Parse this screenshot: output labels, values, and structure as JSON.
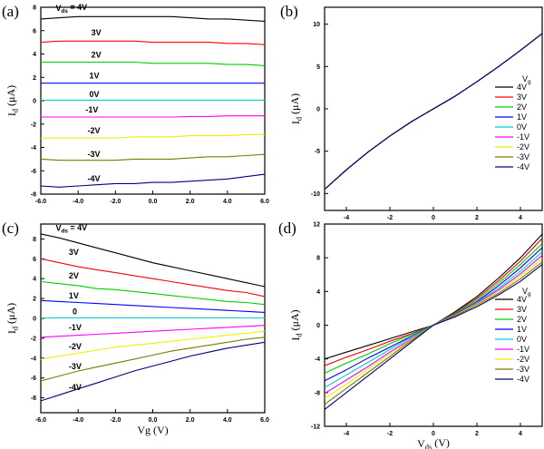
{
  "panels": {
    "a": {
      "label": "(a)"
    },
    "b": {
      "label": "(b)"
    },
    "c": {
      "label": "(c)"
    },
    "d": {
      "label": "(d)"
    }
  },
  "colors": {
    "4V": "#000000",
    "3V": "#ff0000",
    "2V": "#00cc00",
    "1V": "#0000ff",
    "0V": "#00cccc",
    "-1V": "#ff00ff",
    "-2V": "#eeee00",
    "-3V": "#7a7a00",
    "-4V": "#00007a"
  },
  "chart_data": [
    {
      "id": "a",
      "type": "line",
      "ylabel": "I_d (μA)",
      "xlabel": "",
      "xlim": [
        -6,
        6
      ],
      "ylim": [
        -8,
        8
      ],
      "xticks": [
        "-6.0",
        "-4.0",
        "-2.0",
        "0.0",
        "2.0",
        "4.0",
        "6.0"
      ],
      "yticks": [
        "-8",
        "-6",
        "-4",
        "-2",
        "0",
        "2",
        "4",
        "6",
        "8"
      ],
      "grid": false,
      "x": [
        -6,
        -5,
        -4,
        -3,
        -2,
        -1,
        0,
        1,
        2,
        3,
        4,
        5,
        6
      ],
      "series": [
        {
          "name": "4V",
          "values": [
            7.0,
            7.1,
            7.2,
            7.2,
            7.2,
            7.2,
            7.2,
            7.2,
            7.1,
            7.0,
            7.0,
            6.9,
            6.8
          ]
        },
        {
          "name": "3V",
          "values": [
            5.0,
            5.1,
            5.1,
            5.1,
            5.1,
            5.1,
            5.0,
            5.0,
            5.0,
            5.0,
            4.9,
            4.9,
            4.8
          ]
        },
        {
          "name": "2V",
          "values": [
            3.3,
            3.3,
            3.3,
            3.3,
            3.3,
            3.3,
            3.2,
            3.2,
            3.2,
            3.2,
            3.1,
            3.1,
            3.0
          ]
        },
        {
          "name": "1V",
          "values": [
            1.5,
            1.5,
            1.5,
            1.5,
            1.5,
            1.5,
            1.5,
            1.5,
            1.5,
            1.5,
            1.5,
            1.5,
            1.5
          ]
        },
        {
          "name": "0V",
          "values": [
            0.05,
            0.05,
            0.05,
            0.05,
            0.05,
            0.05,
            0.05,
            0.05,
            0.05,
            0.05,
            0.05,
            0.05,
            0.05
          ]
        },
        {
          "name": "-1V",
          "values": [
            -1.4,
            -1.4,
            -1.4,
            -1.4,
            -1.4,
            -1.4,
            -1.4,
            -1.4,
            -1.35,
            -1.35,
            -1.3,
            -1.3,
            -1.3
          ]
        },
        {
          "name": "-2V",
          "values": [
            -3.2,
            -3.2,
            -3.2,
            -3.2,
            -3.2,
            -3.1,
            -3.1,
            -3.1,
            -3.0,
            -3.0,
            -3.0,
            -2.9,
            -2.9
          ]
        },
        {
          "name": "-3V",
          "values": [
            -5.0,
            -5.1,
            -5.1,
            -5.1,
            -5.1,
            -5.0,
            -5.0,
            -5.0,
            -4.9,
            -4.8,
            -4.8,
            -4.7,
            -4.6
          ]
        },
        {
          "name": "-4V",
          "values": [
            -7.3,
            -7.4,
            -7.3,
            -7.2,
            -7.1,
            -7.1,
            -7.0,
            -7.0,
            -6.9,
            -6.8,
            -6.7,
            -6.5,
            -6.3
          ]
        }
      ],
      "annotations": [
        {
          "text": "V_ds = 4V",
          "x": -5.2,
          "y": 7.7
        },
        {
          "text": "3V",
          "x": -3.3,
          "y": 5.6
        },
        {
          "text": "2V",
          "x": -3.3,
          "y": 3.7
        },
        {
          "text": "1V",
          "x": -3.4,
          "y": 1.9
        },
        {
          "text": "0V",
          "x": -3.4,
          "y": 0.3
        },
        {
          "text": "-1V",
          "x": -3.6,
          "y": -1.0
        },
        {
          "text": "-2V",
          "x": -3.5,
          "y": -2.8
        },
        {
          "text": "-3V",
          "x": -3.5,
          "y": -4.8
        },
        {
          "text": "-4V",
          "x": -3.5,
          "y": -6.9
        }
      ]
    },
    {
      "id": "b",
      "type": "line",
      "ylabel": "I_d (μA)",
      "xlabel": "",
      "xlim": [
        -5,
        5
      ],
      "ylim": [
        -12,
        12
      ],
      "xticks": [
        "-4",
        "-2",
        "0",
        "2",
        "4"
      ],
      "yticks": [
        "-10",
        "-5",
        "0",
        "5",
        "10"
      ],
      "grid": false,
      "legend": {
        "title": "V_g",
        "placement": "right"
      },
      "x": [
        -5,
        -4,
        -3,
        -2,
        -1,
        0,
        1,
        2,
        3,
        4,
        5
      ],
      "series": [
        {
          "name": "4V",
          "values": [
            -9.5,
            -7.2,
            -5.1,
            -3.2,
            -1.5,
            0,
            1.5,
            3.2,
            5.0,
            6.9,
            8.9
          ]
        },
        {
          "name": "3V",
          "values": [
            -9.5,
            -7.2,
            -5.1,
            -3.2,
            -1.5,
            0,
            1.5,
            3.2,
            5.0,
            6.9,
            8.9
          ]
        },
        {
          "name": "2V",
          "values": [
            -9.5,
            -7.2,
            -5.1,
            -3.2,
            -1.5,
            0,
            1.5,
            3.2,
            5.0,
            6.9,
            8.9
          ]
        },
        {
          "name": "1V",
          "values": [
            -9.5,
            -7.2,
            -5.1,
            -3.2,
            -1.5,
            0,
            1.5,
            3.2,
            5.0,
            6.9,
            8.9
          ]
        },
        {
          "name": "0V",
          "values": [
            -9.5,
            -7.2,
            -5.1,
            -3.2,
            -1.5,
            0,
            1.5,
            3.2,
            5.0,
            6.9,
            8.9
          ]
        },
        {
          "name": "-1V",
          "values": [
            -9.5,
            -7.2,
            -5.1,
            -3.2,
            -1.5,
            0,
            1.5,
            3.2,
            5.0,
            6.9,
            8.9
          ]
        },
        {
          "name": "-2V",
          "values": [
            -9.5,
            -7.2,
            -5.1,
            -3.2,
            -1.5,
            0,
            1.5,
            3.2,
            5.0,
            6.9,
            8.9
          ]
        },
        {
          "name": "-3V",
          "values": [
            -9.5,
            -7.2,
            -5.1,
            -3.2,
            -1.5,
            0,
            1.5,
            3.2,
            5.0,
            6.9,
            8.9
          ]
        },
        {
          "name": "-4V",
          "values": [
            -9.5,
            -7.2,
            -5.1,
            -3.2,
            -1.5,
            0,
            1.5,
            3.2,
            5.0,
            6.9,
            8.9
          ]
        }
      ]
    },
    {
      "id": "c",
      "type": "line",
      "ylabel": "I_d (μA)",
      "xlabel": "Vg (V)",
      "xlim": [
        -6,
        6
      ],
      "ylim": [
        -9.5,
        9.5
      ],
      "xticks": [
        "-6.0",
        "-4.0",
        "-2.0",
        "0.0",
        "2.0",
        "4.0",
        "6.0"
      ],
      "yticks": [
        "-8",
        "-6",
        "-4",
        "-2",
        "0",
        "2",
        "4",
        "6",
        "8"
      ],
      "grid": false,
      "x": [
        -6,
        -5,
        -4,
        -3,
        -2,
        -1,
        0,
        1,
        2,
        3,
        4,
        5,
        6
      ],
      "series": [
        {
          "name": "4V",
          "values": [
            8.5,
            8.1,
            7.6,
            7.1,
            6.6,
            6.1,
            5.6,
            5.2,
            4.8,
            4.4,
            4.0,
            3.6,
            3.2
          ]
        },
        {
          "name": "3V",
          "values": [
            6.0,
            5.6,
            5.2,
            4.9,
            4.6,
            4.3,
            4.0,
            3.7,
            3.4,
            3.1,
            2.8,
            2.6,
            2.2
          ]
        },
        {
          "name": "2V",
          "values": [
            3.7,
            3.5,
            3.3,
            3.0,
            2.9,
            2.7,
            2.5,
            2.3,
            2.1,
            1.9,
            1.7,
            1.6,
            1.4
          ]
        },
        {
          "name": "1V",
          "values": [
            1.8,
            1.7,
            1.6,
            1.5,
            1.4,
            1.3,
            1.2,
            1.1,
            1.0,
            0.9,
            0.8,
            0.7,
            0.6
          ]
        },
        {
          "name": "0V",
          "values": [
            0.05,
            0.05,
            0.05,
            0.05,
            0.05,
            0.05,
            0.05,
            0.05,
            0.05,
            0.05,
            0.05,
            0.05,
            0.05
          ]
        },
        {
          "name": "-1V",
          "values": [
            -1.9,
            -1.8,
            -1.7,
            -1.6,
            -1.5,
            -1.4,
            -1.3,
            -1.2,
            -1.1,
            -1.0,
            -0.9,
            -0.8,
            -0.7
          ]
        },
        {
          "name": "-2V",
          "values": [
            -4.1,
            -3.8,
            -3.5,
            -3.2,
            -2.9,
            -2.7,
            -2.5,
            -2.3,
            -2.1,
            -1.9,
            -1.7,
            -1.5,
            -1.3
          ]
        },
        {
          "name": "-3V",
          "values": [
            -6.3,
            -5.8,
            -5.3,
            -4.9,
            -4.5,
            -4.1,
            -3.7,
            -3.3,
            -3.0,
            -2.7,
            -2.4,
            -2.1,
            -1.9
          ]
        },
        {
          "name": "-4V",
          "values": [
            -8.3,
            -7.7,
            -7.1,
            -6.5,
            -5.9,
            -5.3,
            -4.8,
            -4.3,
            -3.8,
            -3.4,
            -3.0,
            -2.7,
            -2.4
          ]
        }
      ],
      "annotations": [
        {
          "text": "V_ds = 4V",
          "x": -5.2,
          "y": 8.8
        },
        {
          "text": "3V",
          "x": -4.5,
          "y": 6.4
        },
        {
          "text": "2V",
          "x": -4.5,
          "y": 4.0
        },
        {
          "text": "1V",
          "x": -4.5,
          "y": 2.0
        },
        {
          "text": "0",
          "x": -4.3,
          "y": 0.4
        },
        {
          "text": "-1V",
          "x": -4.5,
          "y": -1.2
        },
        {
          "text": "-2V",
          "x": -4.5,
          "y": -3.1
        },
        {
          "text": "-3V",
          "x": -4.5,
          "y": -5.1
        },
        {
          "text": "-4V",
          "x": -4.5,
          "y": -7.2
        }
      ]
    },
    {
      "id": "d",
      "type": "line",
      "ylabel": "I_d (μA)",
      "xlabel": "V_ds (V)",
      "xlim": [
        -5,
        5
      ],
      "ylim": [
        -12,
        12
      ],
      "xticks": [
        "-4",
        "-2",
        "0",
        "2",
        "4"
      ],
      "yticks": [
        "-12",
        "-8",
        "-4",
        "0",
        "4",
        "8",
        "12"
      ],
      "grid": false,
      "legend": {
        "title": "V_g",
        "placement": "right"
      },
      "x": [
        -5,
        -4,
        -3,
        -2,
        -1,
        0,
        1,
        2,
        3,
        4,
        5
      ],
      "series": [
        {
          "name": "4V",
          "values": [
            -4.0,
            -3.2,
            -2.4,
            -1.6,
            -0.8,
            0,
            1.6,
            3.4,
            5.6,
            8.0,
            10.8
          ]
        },
        {
          "name": "3V",
          "values": [
            -4.8,
            -3.8,
            -2.9,
            -1.9,
            -1.0,
            0,
            1.5,
            3.2,
            5.3,
            7.6,
            10.3
          ]
        },
        {
          "name": "2V",
          "values": [
            -5.7,
            -4.5,
            -3.4,
            -2.2,
            -1.1,
            0,
            1.4,
            3.0,
            5.0,
            7.2,
            9.7
          ]
        },
        {
          "name": "1V",
          "values": [
            -6.6,
            -5.3,
            -3.9,
            -2.6,
            -1.3,
            0,
            1.3,
            2.8,
            4.7,
            6.8,
            9.2
          ]
        },
        {
          "name": "0V",
          "values": [
            -7.4,
            -5.9,
            -4.4,
            -2.9,
            -1.4,
            0,
            1.25,
            2.7,
            4.4,
            6.4,
            8.7
          ]
        },
        {
          "name": "-1V",
          "values": [
            -8.1,
            -6.5,
            -4.9,
            -3.2,
            -1.6,
            0,
            1.2,
            2.6,
            4.2,
            6.1,
            8.3
          ]
        },
        {
          "name": "-2V",
          "values": [
            -8.7,
            -7.0,
            -5.2,
            -3.4,
            -1.7,
            0,
            1.15,
            2.5,
            4.0,
            5.8,
            7.9
          ]
        },
        {
          "name": "-3V",
          "values": [
            -9.4,
            -7.5,
            -5.6,
            -3.7,
            -1.8,
            0,
            1.1,
            2.4,
            3.8,
            5.5,
            7.5
          ]
        },
        {
          "name": "-4V",
          "values": [
            -10.0,
            -8.0,
            -6.0,
            -4.0,
            -2.0,
            0,
            1.0,
            2.2,
            3.6,
            5.2,
            7.2
          ]
        }
      ]
    }
  ]
}
